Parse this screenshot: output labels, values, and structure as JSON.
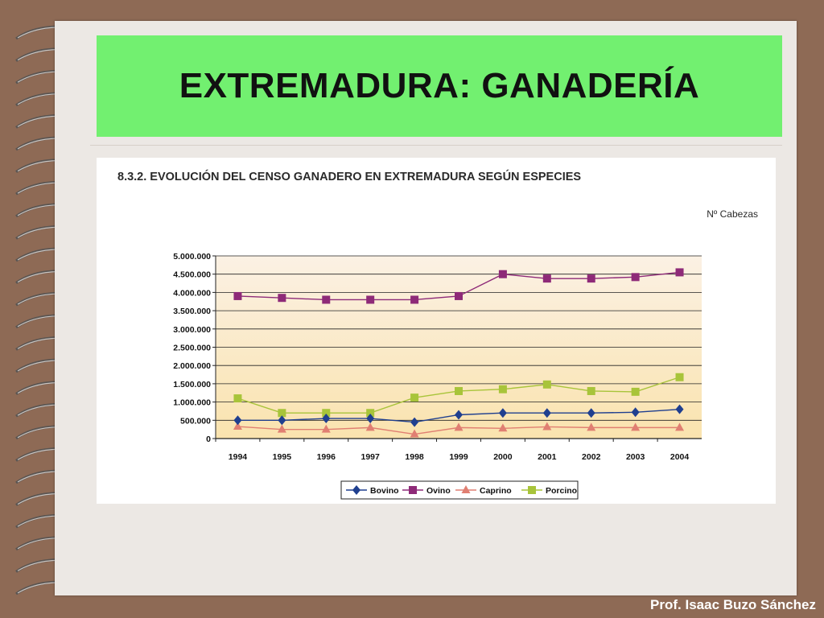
{
  "slide": {
    "title": "EXTREMADURA: GANADERÍA",
    "footer": "Prof. Isaac Buzo Sánchez"
  },
  "chart_data": {
    "type": "line",
    "title": "8.3.2.  EVOLUCIÓN DEL CENSO GANADERO EN EXTREMADURA SEGÚN ESPECIES",
    "unit_label": "Nº Cabezas",
    "categories": [
      "1994",
      "1995",
      "1996",
      "1997",
      "1998",
      "1999",
      "2000",
      "2001",
      "2002",
      "2003",
      "2004"
    ],
    "y_ticks": [
      "0",
      "500.000",
      "1.000.000",
      "1.500.000",
      "2.000.000",
      "2.500.000",
      "3.000.000",
      "3.500.000",
      "4.000.000",
      "4.500.000",
      "5.000.000"
    ],
    "ylim": [
      0,
      5000000
    ],
    "grid": true,
    "legend_position": "bottom",
    "series": [
      {
        "name": "Bovino",
        "color": "#1f3f8f",
        "marker": "diamond",
        "values": [
          500000,
          500000,
          550000,
          550000,
          450000,
          650000,
          700000,
          700000,
          700000,
          720000,
          800000
        ]
      },
      {
        "name": "Ovino",
        "color": "#8e2a78",
        "marker": "square",
        "values": [
          3900000,
          3850000,
          3800000,
          3800000,
          3800000,
          3900000,
          4500000,
          4380000,
          4380000,
          4420000,
          4550000
        ]
      },
      {
        "name": "Caprino",
        "color": "#e07f72",
        "marker": "triangle",
        "values": [
          330000,
          250000,
          250000,
          300000,
          120000,
          300000,
          280000,
          320000,
          300000,
          300000,
          300000
        ]
      },
      {
        "name": "Porcino",
        "color": "#a8c43a",
        "marker": "square",
        "values": [
          1100000,
          700000,
          700000,
          700000,
          1120000,
          1300000,
          1350000,
          1480000,
          1300000,
          1280000,
          1680000
        ]
      }
    ]
  }
}
